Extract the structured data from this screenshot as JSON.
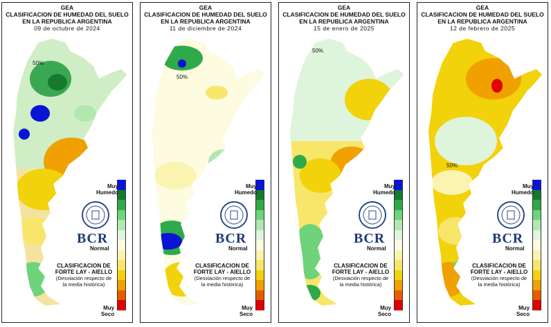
{
  "header": {
    "line1": "GEA",
    "line2": "CLASIFICACION DE HUMEDAD DEL SUELO",
    "line3": "EN LA REPUBLICA ARGENTINA"
  },
  "panels": [
    {
      "date": "09 de octubre de 2024"
    },
    {
      "date": "11 de diciembre de 2024"
    },
    {
      "date": "15 de enero de 2025"
    },
    {
      "date": "12 de febrero de 2025"
    }
  ],
  "legend": {
    "wet_label_1": "Muy",
    "wet_label_2": "Humedo",
    "normal_label": "Normal",
    "dry_label_1": "Muy",
    "dry_label_2": "Seco",
    "colors": [
      "#0a14d6",
      "#157a2e",
      "#2faa4a",
      "#6ed37a",
      "#b0e8b0",
      "#dff4dc",
      "#fdfbe0",
      "#fbf3b0",
      "#f7e66a",
      "#f2d20a",
      "#f0a000",
      "#e85c00",
      "#e00000"
    ]
  },
  "brand": {
    "logo_text": "BCR"
  },
  "footer": {
    "title_1": "CLASIFICACION DE",
    "title_2": "FORTE LAY - AIELLO",
    "sub_1": "(Desviación respecto de",
    "sub_2": "la media histórica)"
  },
  "contour_label": "50%"
}
